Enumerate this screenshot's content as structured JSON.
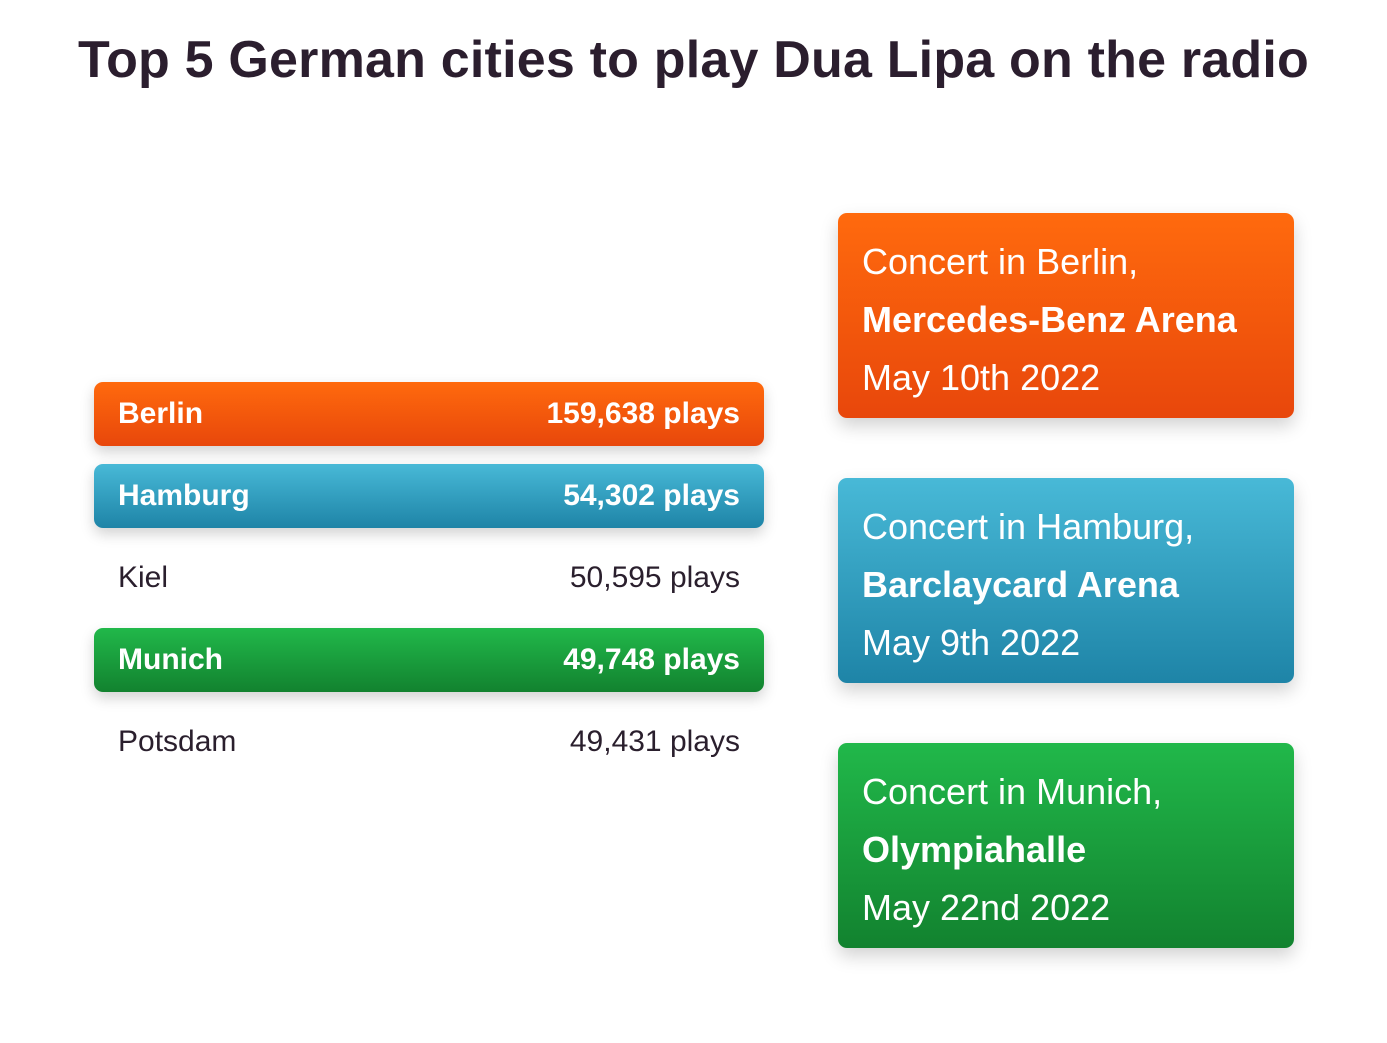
{
  "title": "Top 5 German cities to play Dua Lipa on the radio",
  "colors": {
    "berlin": "#f4590d",
    "hamburg": "#3aa6c8",
    "munich": "#1aa13e"
  },
  "cities": [
    {
      "name": "Berlin",
      "plays": "159,638 plays",
      "highlight": "orange"
    },
    {
      "name": "Hamburg",
      "plays": "54,302 plays",
      "highlight": "blue"
    },
    {
      "name": "Kiel",
      "plays": "50,595 plays",
      "highlight": ""
    },
    {
      "name": "Munich",
      "plays": "49,748 plays",
      "highlight": "green"
    },
    {
      "name": "Potsdam",
      "plays": "49,431 plays",
      "highlight": ""
    }
  ],
  "concerts": [
    {
      "intro": "Concert in Berlin,",
      "venue": "Mercedes-Benz Arena",
      "date": "May 10th 2022"
    },
    {
      "intro": "Concert in Hamburg,",
      "venue": "Barclaycard Arena",
      "date": "May 9th 2022"
    },
    {
      "intro": "Concert in Munich,",
      "venue": "Olympiahalle",
      "date": "May 22nd 2022"
    }
  ]
}
